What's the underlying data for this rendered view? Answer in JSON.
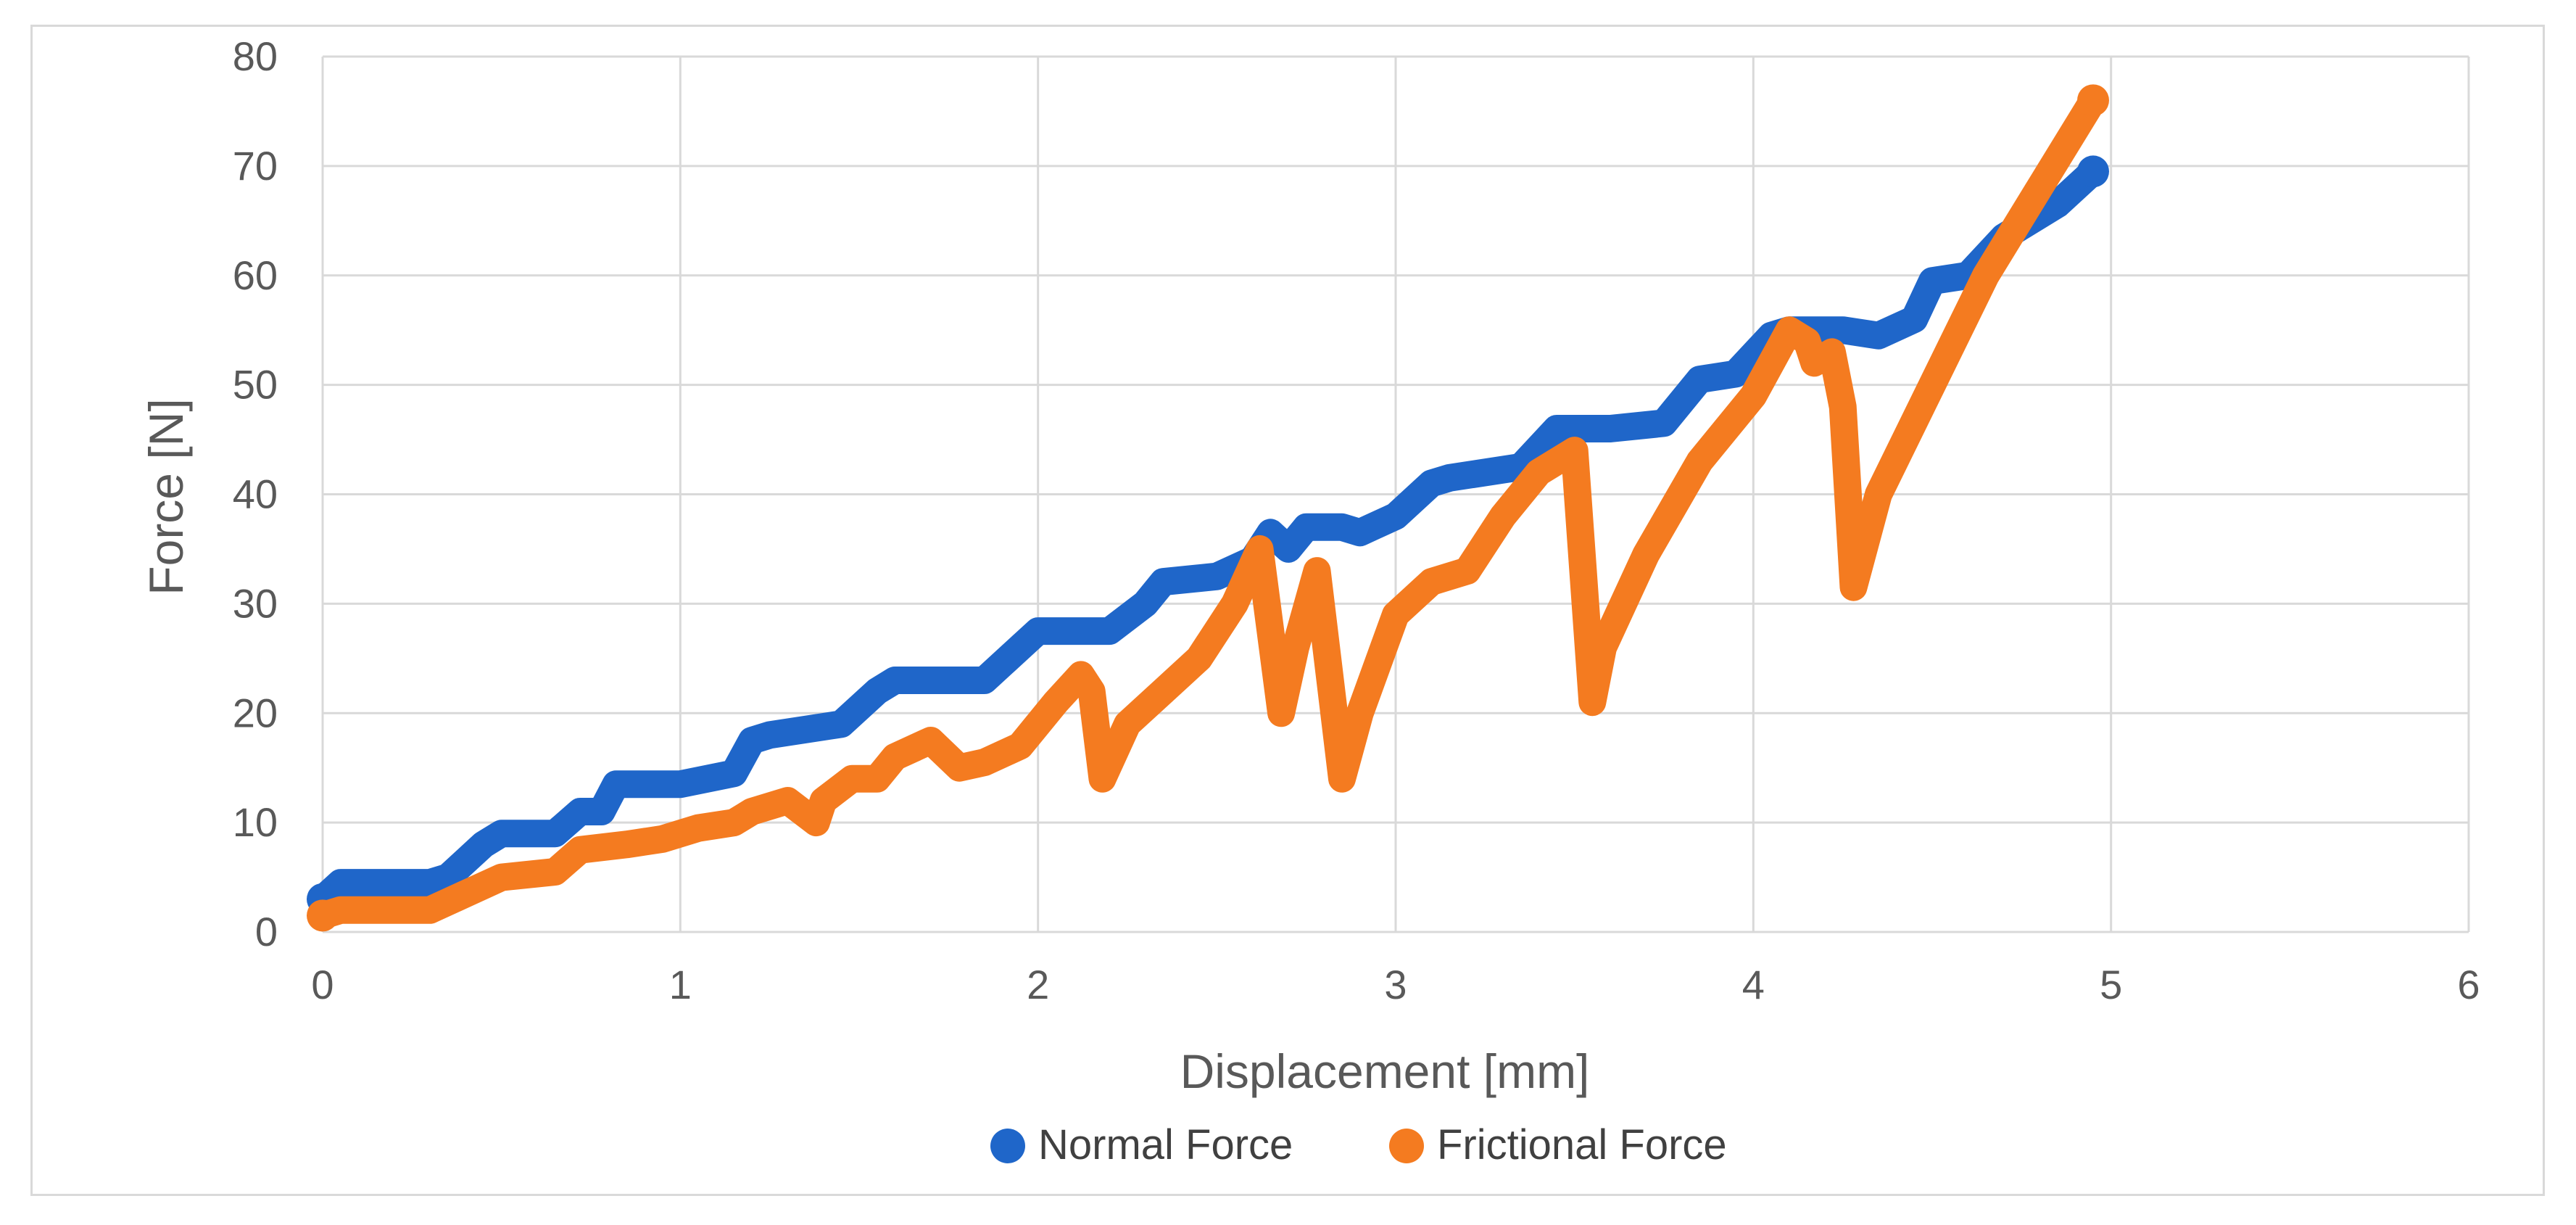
{
  "chart_data": {
    "type": "line",
    "title": "",
    "xlabel": "Displacement [mm]",
    "ylabel": "Force  [N]",
    "xlim": [
      0,
      6
    ],
    "ylim": [
      0,
      80
    ],
    "xticks": [
      0,
      1,
      2,
      3,
      4,
      5,
      6
    ],
    "yticks": [
      0,
      10,
      20,
      30,
      40,
      50,
      60,
      70,
      80
    ],
    "x_tick_labels": [
      "0",
      "1",
      "2",
      "3",
      "4",
      "5",
      "6"
    ],
    "y_tick_labels": [
      "0",
      "10",
      "20",
      "30",
      "40",
      "50",
      "60",
      "70",
      "80"
    ],
    "grid": true,
    "legend_position": "bottom",
    "series": [
      {
        "name": "Normal Force",
        "color": "#1f66c9",
        "x": [
          0,
          0.05,
          0.1,
          0.3,
          0.35,
          0.45,
          0.5,
          0.65,
          0.72,
          0.78,
          0.82,
          1.0,
          1.15,
          1.2,
          1.25,
          1.45,
          1.55,
          1.6,
          1.85,
          1.95,
          2.0,
          2.2,
          2.3,
          2.35,
          2.5,
          2.6,
          2.65,
          2.7,
          2.75,
          2.85,
          2.9,
          3.0,
          3.1,
          3.15,
          3.35,
          3.45,
          3.55,
          3.6,
          3.75,
          3.85,
          3.95,
          4.05,
          4.1,
          4.25,
          4.35,
          4.45,
          4.5,
          4.6,
          4.7,
          4.75,
          4.85,
          4.95
        ],
        "y": [
          3,
          4.5,
          4.5,
          4.5,
          5,
          8,
          9,
          9,
          11,
          11,
          13.5,
          13.5,
          14.5,
          17.5,
          18,
          19,
          22,
          23,
          23,
          26,
          27.5,
          27.5,
          30,
          32,
          32.5,
          34,
          36.5,
          35,
          37,
          37,
          36.5,
          38,
          41,
          41.5,
          42.5,
          46,
          46,
          46,
          46.5,
          50.5,
          51,
          54.5,
          55,
          55,
          54.5,
          56,
          59.5,
          60,
          63.5,
          64.5,
          66.5,
          69.5
        ]
      },
      {
        "name": "Frictional Force",
        "color": "#f47b20",
        "x": [
          0,
          0.05,
          0.3,
          0.4,
          0.5,
          0.65,
          0.72,
          0.85,
          0.95,
          1.05,
          1.15,
          1.2,
          1.3,
          1.38,
          1.4,
          1.48,
          1.55,
          1.6,
          1.7,
          1.78,
          1.85,
          1.95,
          2.05,
          2.12,
          2.15,
          2.18,
          2.25,
          2.35,
          2.45,
          2.55,
          2.62,
          2.68,
          2.72,
          2.78,
          2.85,
          2.9,
          3.0,
          3.1,
          3.2,
          3.3,
          3.4,
          3.5,
          3.55,
          3.58,
          3.7,
          3.85,
          4.0,
          4.1,
          4.15,
          4.17,
          4.22,
          4.25,
          4.28,
          4.35,
          4.5,
          4.65,
          4.8,
          4.95
        ],
        "y": [
          1.5,
          2,
          2,
          3.5,
          5,
          5.5,
          7.5,
          8,
          8.5,
          9.5,
          10,
          11,
          12,
          10,
          12,
          14,
          14,
          16,
          17.5,
          15,
          15.5,
          17,
          21,
          23.5,
          22,
          14,
          19,
          22,
          25,
          30,
          35,
          20,
          26,
          33,
          14,
          20,
          29,
          32,
          33,
          38,
          42,
          44,
          21,
          26,
          34.5,
          43,
          49,
          55,
          54,
          52,
          53,
          48,
          31.5,
          40,
          50,
          60,
          68,
          76
        ]
      }
    ]
  }
}
